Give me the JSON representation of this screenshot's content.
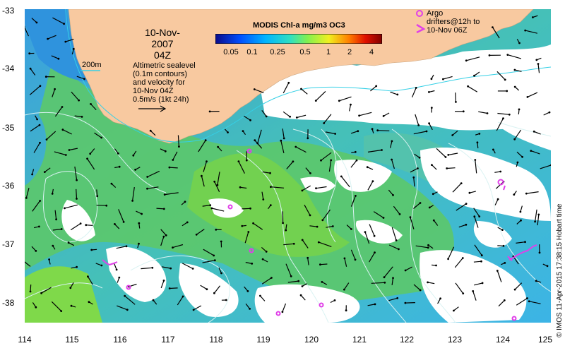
{
  "map": {
    "date": "10-Nov-2007",
    "time": "04Z",
    "colorbar": {
      "title": "MODIS Chl-a mg/m3 OC3",
      "labels": [
        "0.05",
        "0.1",
        "0.25",
        "0.5",
        "1",
        "2",
        "4"
      ]
    },
    "isobath_label": "200m",
    "altimetry_note": [
      "Altimetric sealevel",
      "(0.1m contours)",
      "and velocity for",
      "10-Nov 04Z",
      "0.5m/s (1kt 24h)"
    ],
    "argo_legend": [
      "Argo",
      "drifters@12h to",
      "10-Nov 06Z"
    ],
    "credit": "© IMOS 11-Apr-2015 17:38:15 Hobart time",
    "y_ticks": [
      "-33",
      "-34",
      "-35",
      "-36",
      "-37",
      "-38"
    ],
    "x_ticks": [
      "114",
      "115",
      "116",
      "117",
      "118",
      "119",
      "120",
      "121",
      "122",
      "123",
      "124",
      "125"
    ],
    "colors": {
      "land": "#f8c9a0",
      "ocean_low": "#3fb4e4",
      "ocean_mid": "#5ec96a",
      "ocean_high": "#8fdc3a",
      "contour": "#d9f2f2",
      "isobath": "#35d0e6",
      "argo": "#e040e8",
      "arrow": "#000000"
    }
  }
}
